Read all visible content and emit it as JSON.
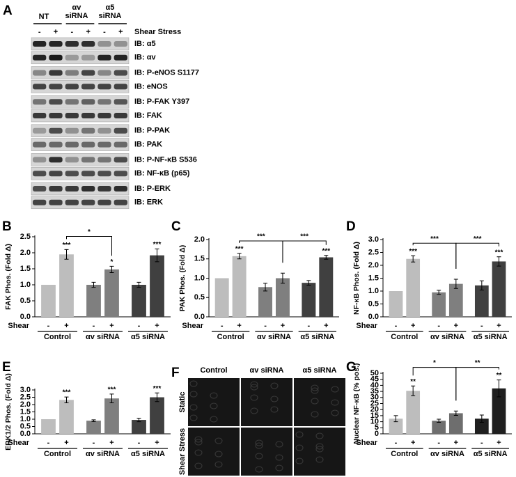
{
  "blot": {
    "panel": "A",
    "groups": [
      "NT",
      "αv siRNA",
      "α5 siRNA"
    ],
    "lanes": [
      "-",
      "+",
      "-",
      "+",
      "-",
      "+"
    ],
    "lane_title": "Shear Stress",
    "rows": [
      "IB: α5",
      "IB: αv",
      "IB: P-eNOS S1177",
      "IB: eNOS",
      "IB: P-FAK Y397",
      "IB: FAK",
      "IB: P-PAK",
      "IB: PAK",
      "IB: P-NF-κB S536",
      "IB: NF-κB (p65)",
      "IB: P-ERK",
      "IB: ERK"
    ]
  },
  "micrograph": {
    "panel": "F",
    "columns": [
      "Control",
      "αv siRNA",
      "α5 siRNA"
    ],
    "rows": [
      "Static",
      "Shear Stress"
    ]
  },
  "chart_data": [
    {
      "type": "bar",
      "panel": "B",
      "ylabel": "FAK Phos. (Fold Δ)",
      "xlabel": "Shear",
      "categories": [
        "-",
        "+",
        "-",
        "+",
        "-",
        "+"
      ],
      "groups": [
        "Control",
        "αv siRNA",
        "α5 siRNA"
      ],
      "values": [
        1.0,
        1.95,
        1.0,
        1.48,
        1.0,
        1.92
      ],
      "errors": [
        0,
        0.15,
        0.08,
        0.1,
        0.08,
        0.2
      ],
      "colors": [
        "#bdbdbd",
        "#bdbdbd",
        "#7f7f7f",
        "#7f7f7f",
        "#404040",
        "#404040"
      ],
      "stars": [
        null,
        "***",
        null,
        "*",
        null,
        "***"
      ],
      "brackets": [
        {
          "label": "*",
          "from": 1,
          "to": 3
        }
      ],
      "ylim": [
        0,
        2.5
      ],
      "yticks": [
        {
          "value": 0,
          "label": "0.0"
        },
        {
          "value": 0.5,
          "label": "0.5"
        },
        {
          "value": 1,
          "label": "1.0"
        },
        {
          "value": 1.5,
          "label": "1.5"
        },
        {
          "value": 2,
          "label": "2.0"
        },
        {
          "value": 2.5,
          "label": "2.5"
        }
      ]
    },
    {
      "type": "bar",
      "panel": "C",
      "ylabel": "PAK Phos. (Fold Δ)",
      "xlabel": "Shear",
      "categories": [
        "-",
        "+",
        "-",
        "+",
        "-",
        "+"
      ],
      "groups": [
        "Control",
        "αv siRNA",
        "α5 siRNA"
      ],
      "values": [
        1.0,
        1.57,
        0.77,
        1.0,
        0.88,
        1.54
      ],
      "errors": [
        0,
        0.07,
        0.1,
        0.13,
        0.06,
        0.05
      ],
      "colors": [
        "#bdbdbd",
        "#bdbdbd",
        "#7f7f7f",
        "#7f7f7f",
        "#404040",
        "#404040"
      ],
      "stars": [
        null,
        "***",
        null,
        null,
        null,
        "***"
      ],
      "brackets": [
        {
          "label": "***",
          "from": 1,
          "to": 3
        },
        {
          "label": "***",
          "from": 3,
          "to": 5
        }
      ],
      "ylim": [
        0,
        2.0
      ],
      "yticks": [
        {
          "value": 0,
          "label": "0.0"
        },
        {
          "value": 0.5,
          "label": "0.5"
        },
        {
          "value": 1,
          "label": "1.0"
        },
        {
          "value": 1.5,
          "label": "1.5"
        },
        {
          "value": 2,
          "label": "2.0"
        }
      ]
    },
    {
      "type": "bar",
      "panel": "D",
      "ylabel": "NF-κB Phos. (Fold Δ)",
      "xlabel": "Shear",
      "categories": [
        "-",
        "+",
        "-",
        "+",
        "-",
        "+"
      ],
      "groups": [
        "Control",
        "αv siRNA",
        "α5 siRNA"
      ],
      "values": [
        1.0,
        2.25,
        0.95,
        1.28,
        1.22,
        2.15
      ],
      "errors": [
        0,
        0.12,
        0.08,
        0.18,
        0.18,
        0.18
      ],
      "colors": [
        "#bdbdbd",
        "#bdbdbd",
        "#7f7f7f",
        "#7f7f7f",
        "#404040",
        "#404040"
      ],
      "stars": [
        null,
        "***",
        null,
        null,
        null,
        "***"
      ],
      "brackets": [
        {
          "label": "***",
          "from": 1,
          "to": 3
        },
        {
          "label": "***",
          "from": 3,
          "to": 5
        }
      ],
      "ylim": [
        0,
        3.0
      ],
      "yticks": [
        {
          "value": 0,
          "label": "0.0"
        },
        {
          "value": 0.5,
          "label": "0.5"
        },
        {
          "value": 1,
          "label": "1.0"
        },
        {
          "value": 1.5,
          "label": "1.5"
        },
        {
          "value": 2,
          "label": "2.0"
        },
        {
          "value": 2.5,
          "label": "2.5"
        },
        {
          "value": 3,
          "label": "3.0"
        }
      ]
    },
    {
      "type": "bar",
      "panel": "E",
      "ylabel": "ERK1/2 Phos. (Fold Δ)",
      "xlabel": "Shear",
      "categories": [
        "-",
        "+",
        "-",
        "+",
        "-",
        "+"
      ],
      "groups": [
        "Control",
        "αv siRNA",
        "α5 siRNA"
      ],
      "values": [
        1.0,
        2.32,
        0.9,
        2.42,
        0.95,
        2.5
      ],
      "errors": [
        0,
        0.2,
        0.06,
        0.3,
        0.12,
        0.3
      ],
      "colors": [
        "#bdbdbd",
        "#bdbdbd",
        "#7f7f7f",
        "#7f7f7f",
        "#404040",
        "#404040"
      ],
      "stars": [
        null,
        "***",
        null,
        "***",
        null,
        "***"
      ],
      "brackets": [],
      "ylim": [
        0,
        3.0
      ],
      "yticks": [
        {
          "value": 0,
          "label": "0.0"
        },
        {
          "value": 0.5,
          "label": "0.5"
        },
        {
          "value": 1,
          "label": "1.0"
        },
        {
          "value": 1.5,
          "label": "1.5"
        },
        {
          "value": 2,
          "label": "2.0"
        },
        {
          "value": 2.5,
          "label": "2.5"
        },
        {
          "value": 3,
          "label": "3.0"
        }
      ]
    },
    {
      "type": "bar",
      "panel": "G",
      "ylabel": "Nuclear NF-κB (% pos.)",
      "xlabel": "Shear",
      "categories": [
        "-",
        "+",
        "-",
        "+",
        "-",
        "+"
      ],
      "groups": [
        "Control",
        "αv siRNA",
        "α5 siRNA"
      ],
      "values": [
        12.5,
        35.5,
        10.8,
        17,
        12.5,
        37.5
      ],
      "errors": [
        2.5,
        4,
        1.3,
        1.8,
        3,
        7
      ],
      "colors": [
        "#bdbdbd",
        "#bdbdbd",
        "#6e6e6e",
        "#6e6e6e",
        "#1f1f1f",
        "#1f1f1f"
      ],
      "stars": [
        null,
        "**",
        null,
        null,
        null,
        "**"
      ],
      "brackets": [
        {
          "label": "*",
          "from": 1,
          "to": 3
        },
        {
          "label": "**",
          "from": 3,
          "to": 5
        }
      ],
      "ylim": [
        0,
        50
      ],
      "yticks": [
        0,
        5,
        10,
        15,
        20,
        25,
        30,
        35,
        40,
        45,
        50
      ]
    }
  ]
}
